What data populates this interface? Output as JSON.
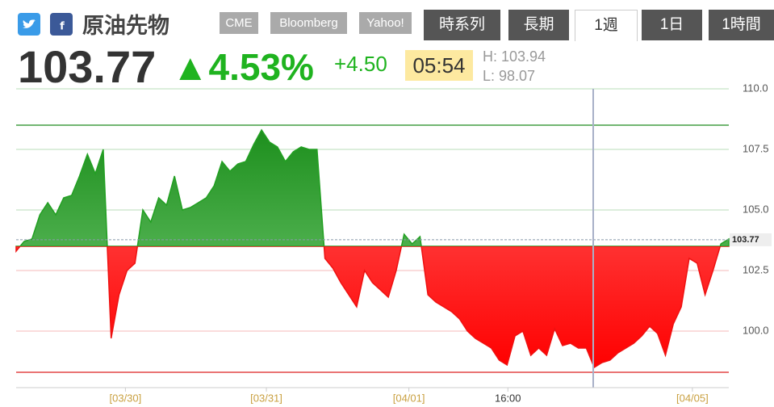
{
  "header": {
    "title": "原油先物",
    "links": [
      "CME",
      "Bloomberg",
      "Yahoo!"
    ],
    "tabs": [
      "時系列",
      "長期",
      "1週",
      "1日",
      "1時間"
    ],
    "active_tab": 2
  },
  "quote": {
    "price": "103.77",
    "change_pct": "▲4.53%",
    "change": "+4.50",
    "time": "05:54",
    "high": "H: 103.94",
    "low": "L: 98.07"
  },
  "chart_data": {
    "type": "area",
    "xlim": [
      0,
      90
    ],
    "xticks": [
      {
        "value": 13.8,
        "label": "[03/30]"
      },
      {
        "value": 31.6,
        "label": "[03/31]"
      },
      {
        "value": 49.6,
        "label": "[04/01]"
      },
      {
        "value": 62.1,
        "label": "16:00"
      },
      {
        "value": 85.4,
        "label": "[04/05]"
      }
    ],
    "xtick_colors": [
      "#c9a040",
      "#c9a040",
      "#c9a040",
      "#333333",
      "#c9a040"
    ],
    "ylim": [
      97.5,
      110.5
    ],
    "yticks": [
      {
        "value": 100,
        "label": "100.0"
      },
      {
        "value": 102.5,
        "label": "102.5"
      },
      {
        "value": 105,
        "label": "105.0"
      },
      {
        "value": 107.5,
        "label": "107.5"
      },
      {
        "value": 110,
        "label": "110.0"
      }
    ],
    "grid": true,
    "baseline": 103.5,
    "high_line": 108.5,
    "low_line": 98.3,
    "last": 103.77,
    "up_color": "#22a022",
    "down_color": "#ee1111",
    "values": [
      103.3,
      103.7,
      103.8,
      104.8,
      105.3,
      104.8,
      105.5,
      105.6,
      106.4,
      107.3,
      106.5,
      107.5,
      99.7,
      101.5,
      102.5,
      102.8,
      105.0,
      104.5,
      105.5,
      105.2,
      106.4,
      105.0,
      105.1,
      105.3,
      105.5,
      106.0,
      107.0,
      106.6,
      106.9,
      107.0,
      107.7,
      108.3,
      107.8,
      107.6,
      107.0,
      107.4,
      107.6,
      107.5,
      107.5,
      103.0,
      102.6,
      102.0,
      101.5,
      101.0,
      102.5,
      102.0,
      101.7,
      101.4,
      102.5,
      104.0,
      103.6,
      103.9,
      101.5,
      101.2,
      101.0,
      100.8,
      100.5,
      100.0,
      99.7,
      99.5,
      99.3,
      98.8,
      98.6,
      99.8,
      100.0,
      99.0,
      99.3,
      99.0,
      100.1,
      99.4,
      99.5,
      99.3,
      99.3,
      98.5,
      98.7,
      98.8,
      99.1,
      99.3,
      99.5,
      99.8,
      100.2,
      99.9,
      99.0,
      100.3,
      101.0,
      103.0,
      102.8,
      101.5,
      102.5,
      103.6,
      103.8
    ]
  }
}
